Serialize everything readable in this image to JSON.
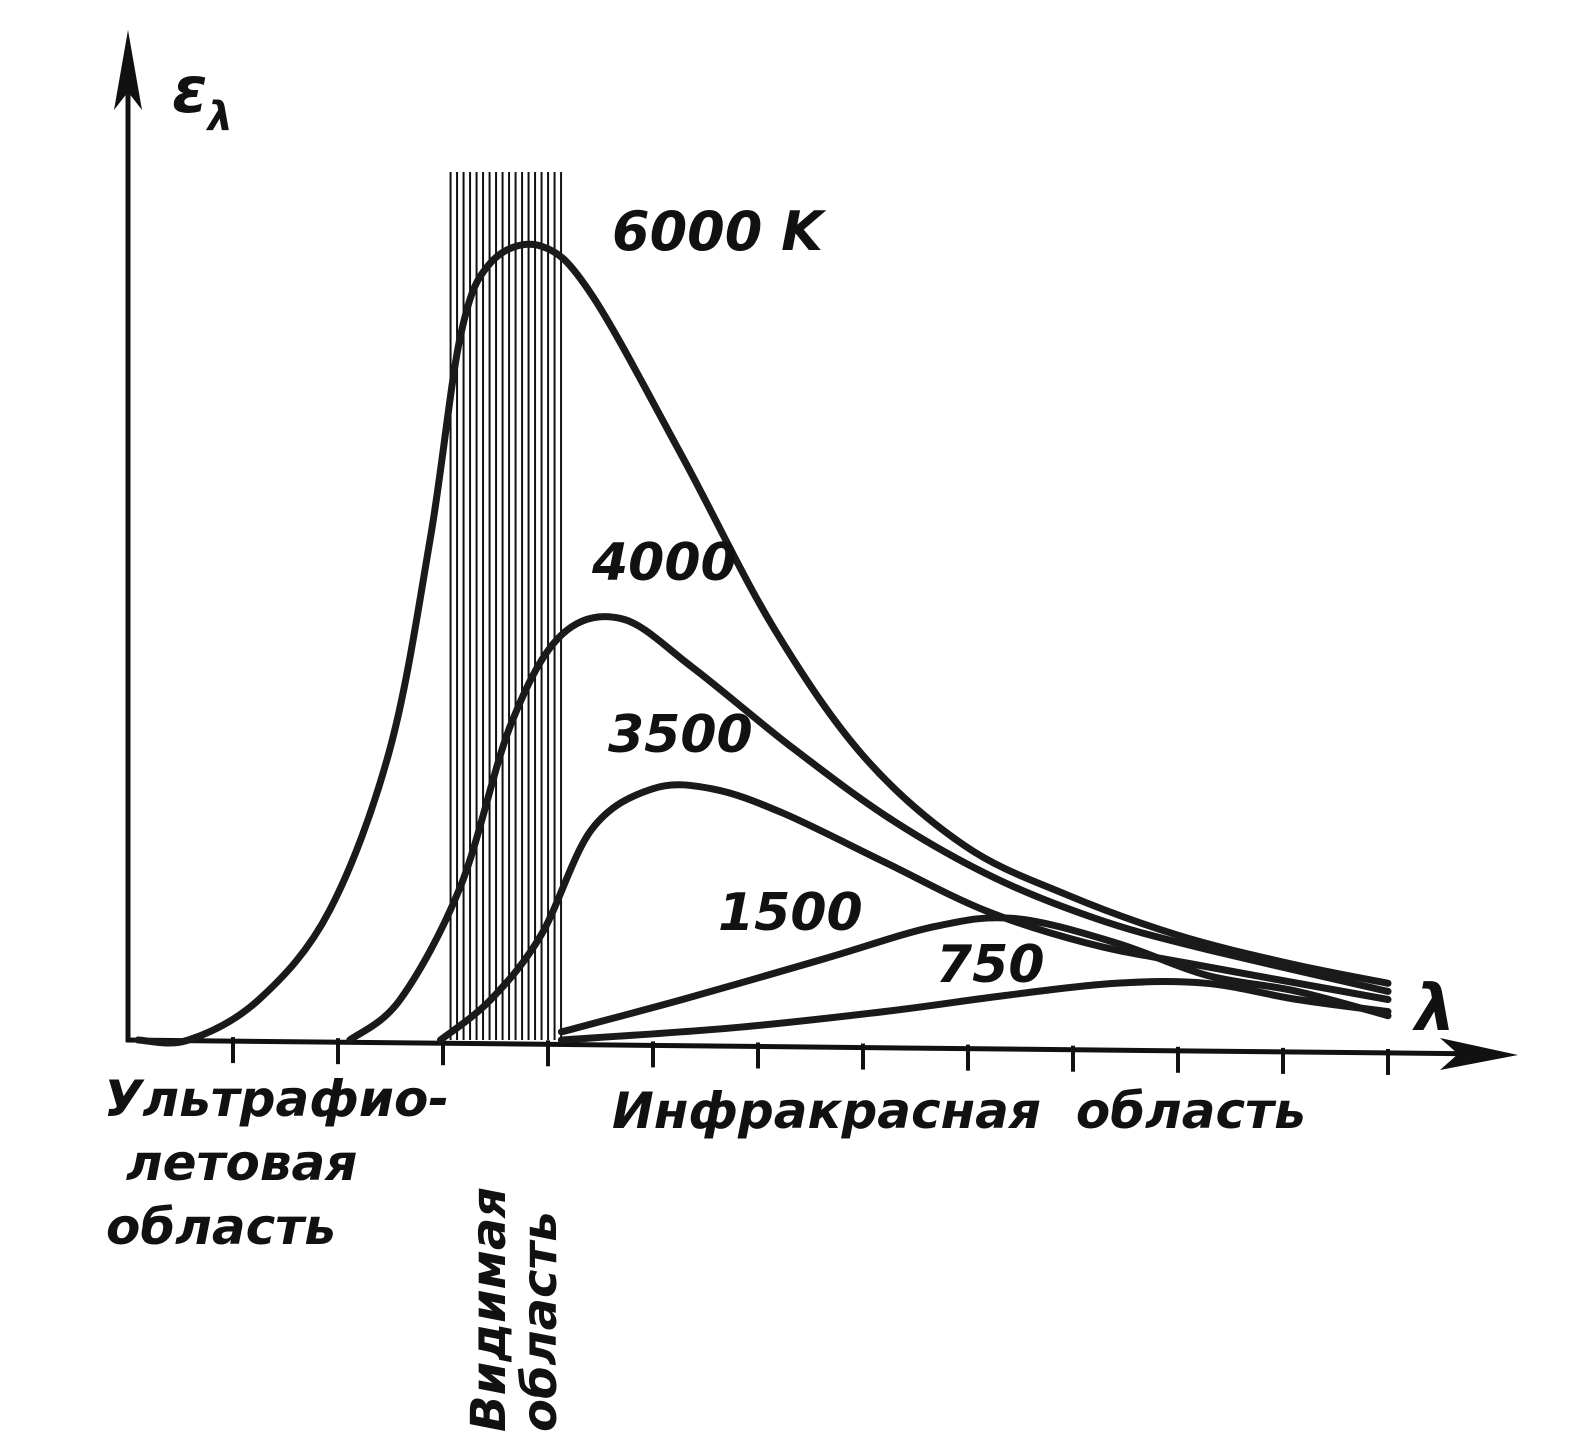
{
  "chart_data": {
    "type": "line",
    "title": "",
    "xlabel": "λ",
    "ylabel": "ελ",
    "axis_symbols": {
      "x": "λ",
      "y": "ε",
      "y_subscript": "λ"
    },
    "x_range": [
      0,
      12.5
    ],
    "y_range": [
      0,
      10
    ],
    "tick_count": 12,
    "grid": false,
    "legend": "none",
    "visible_band": [
      3.2,
      4.3
    ],
    "regions": {
      "uv_line1": "Ультрафио-",
      "uv_line2": "летовая",
      "uv_line3": "область",
      "visible_line1": "Видимая",
      "visible_line2": "область",
      "infrared": "Инфракрасная  область"
    },
    "series": [
      {
        "name": "6000 K",
        "points": [
          [
            0.1,
            0
          ],
          [
            0.6,
            0
          ],
          [
            1.3,
            0.5
          ],
          [
            2.0,
            1.6
          ],
          [
            2.6,
            3.6
          ],
          [
            3.0,
            6.2
          ],
          [
            3.3,
            8.7
          ],
          [
            3.6,
            9.6
          ],
          [
            4.1,
            9.8
          ],
          [
            4.6,
            9.2
          ],
          [
            5.5,
            7.2
          ],
          [
            6.4,
            5.1
          ],
          [
            7.3,
            3.5
          ],
          [
            8.3,
            2.4
          ],
          [
            9.3,
            1.8
          ],
          [
            10.4,
            1.3
          ],
          [
            11.5,
            0.95
          ],
          [
            12.5,
            0.7
          ]
        ]
      },
      {
        "name": "4000",
        "points": [
          [
            2.2,
            0
          ],
          [
            2.7,
            0.5
          ],
          [
            3.3,
            1.9
          ],
          [
            3.8,
            3.9
          ],
          [
            4.3,
            5.0
          ],
          [
            4.9,
            5.2
          ],
          [
            5.6,
            4.6
          ],
          [
            6.6,
            3.6
          ],
          [
            7.6,
            2.7
          ],
          [
            8.6,
            2.0
          ],
          [
            9.6,
            1.5
          ],
          [
            10.6,
            1.15
          ],
          [
            12.5,
            0.6
          ]
        ]
      },
      {
        "name": "3500",
        "points": [
          [
            3.1,
            0
          ],
          [
            3.6,
            0.5
          ],
          [
            4.1,
            1.3
          ],
          [
            4.6,
            2.6
          ],
          [
            5.2,
            3.1
          ],
          [
            5.8,
            3.1
          ],
          [
            6.5,
            2.8
          ],
          [
            7.5,
            2.2
          ],
          [
            8.5,
            1.6
          ],
          [
            9.5,
            1.2
          ],
          [
            10.5,
            0.95
          ],
          [
            12.5,
            0.5
          ]
        ]
      },
      {
        "name": "1500",
        "points": [
          [
            4.3,
            0.1
          ],
          [
            5.5,
            0.5
          ],
          [
            6.9,
            1.0
          ],
          [
            8.0,
            1.4
          ],
          [
            8.8,
            1.5
          ],
          [
            9.8,
            1.2
          ],
          [
            10.7,
            0.8
          ],
          [
            11.6,
            0.6
          ],
          [
            12.5,
            0.3
          ]
        ]
      },
      {
        "name": "750",
        "points": [
          [
            4.3,
            0
          ],
          [
            6.0,
            0.15
          ],
          [
            7.5,
            0.35
          ],
          [
            8.7,
            0.55
          ],
          [
            9.8,
            0.7
          ],
          [
            10.7,
            0.7
          ],
          [
            11.6,
            0.5
          ],
          [
            12.5,
            0.35
          ]
        ]
      }
    ]
  }
}
